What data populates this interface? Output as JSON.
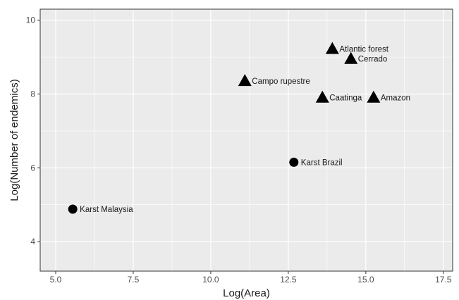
{
  "chart_data": {
    "type": "scatter",
    "title": "",
    "xlabel": "Log(Area)",
    "ylabel": "Log(Number of endemics)",
    "xlim": [
      4.5,
      17.8
    ],
    "ylim": [
      3.2,
      10.3
    ],
    "x_ticks": [
      5.0,
      7.5,
      10.0,
      12.5,
      15.0,
      17.5
    ],
    "x_tick_labels": [
      "5.0",
      "7.5",
      "10.0",
      "12.5",
      "15.0",
      "17.5"
    ],
    "y_ticks": [
      4,
      6,
      8,
      10
    ],
    "y_tick_labels": [
      "4",
      "6",
      "8",
      "10"
    ],
    "grid": true,
    "colors": {
      "panel": "#ebebeb",
      "grid": "#ffffff",
      "point": "#000000"
    },
    "points": [
      {
        "label": "Karst Malaysia",
        "x": 5.55,
        "y": 4.88,
        "shape": "circle"
      },
      {
        "label": "Karst Brazil",
        "x": 12.68,
        "y": 6.15,
        "shape": "circle"
      },
      {
        "label": "Campo rupestre",
        "x": 11.1,
        "y": 8.35,
        "shape": "triangle"
      },
      {
        "label": "Caatinga",
        "x": 13.6,
        "y": 7.9,
        "shape": "triangle"
      },
      {
        "label": "Amazon",
        "x": 15.25,
        "y": 7.9,
        "shape": "triangle"
      },
      {
        "label": "Atlantic forest",
        "x": 13.92,
        "y": 9.22,
        "shape": "triangle"
      },
      {
        "label": "Cerrado",
        "x": 14.52,
        "y": 8.95,
        "shape": "triangle"
      }
    ]
  }
}
